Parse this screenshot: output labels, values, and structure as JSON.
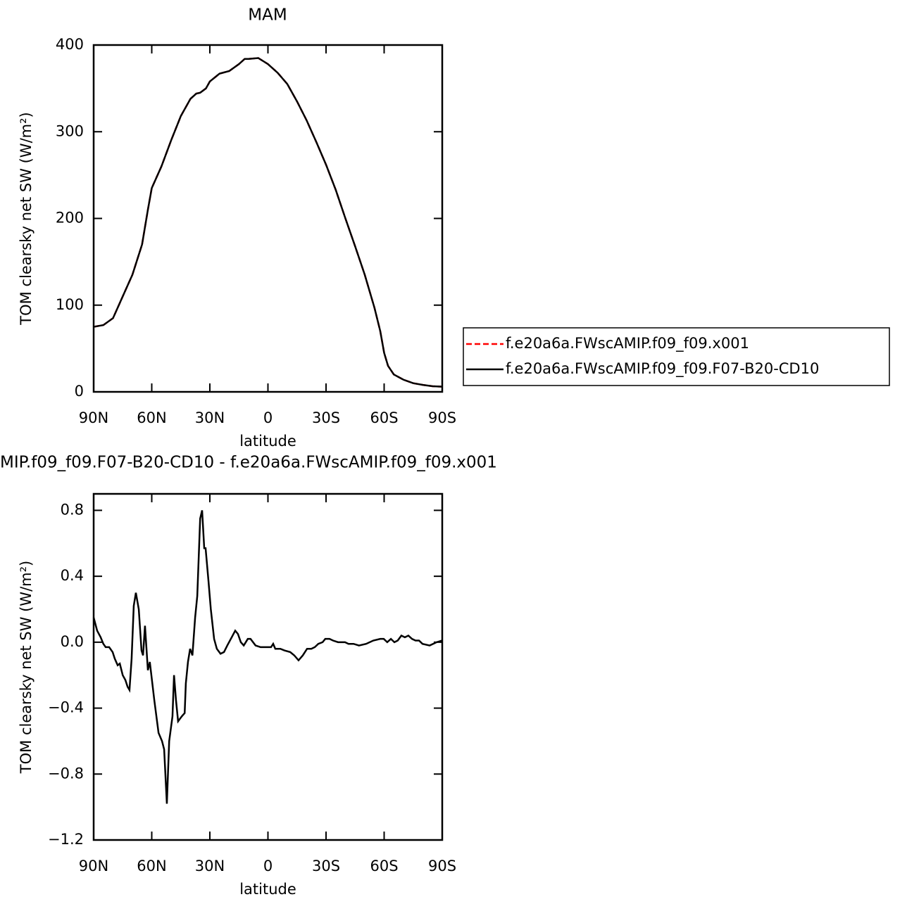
{
  "chart_data": [
    {
      "type": "line",
      "title": "MAM",
      "x_label": "latitude",
      "y_label": "TOM clearsky net SW (W/m²)",
      "x": [
        90,
        85,
        80,
        77,
        75,
        70,
        65,
        62,
        60,
        55,
        50,
        45,
        40,
        37,
        35,
        32,
        30,
        25,
        20,
        15,
        12,
        10,
        5,
        0,
        -5,
        -10,
        -15,
        -20,
        -25,
        -30,
        -35,
        -40,
        -45,
        -50,
        -55,
        -58,
        -60,
        -62,
        -65,
        -70,
        -75,
        -80,
        -85,
        -90
      ],
      "series": [
        {
          "name": "f.e20a6a.FWscAMIP.f09_f09.x001",
          "color": "#ff0000",
          "dash": true,
          "values": [
            75,
            77,
            85,
            100,
            110,
            135,
            170,
            210,
            235,
            260,
            290,
            318,
            338,
            344,
            345,
            350,
            358,
            367,
            370,
            378,
            384,
            384,
            385,
            378,
            368,
            355,
            335,
            313,
            288,
            262,
            233,
            200,
            168,
            135,
            97,
            70,
            45,
            30,
            20,
            14,
            10,
            8,
            6.5,
            6
          ]
        },
        {
          "name": "f.e20a6a.FWscAMIP.f09_f09.F07-B20-CD10",
          "color": "#000000",
          "dash": false,
          "values": [
            75,
            77,
            85,
            100,
            110,
            135,
            170,
            210,
            235,
            260,
            290,
            318,
            338,
            344,
            345,
            350,
            358,
            367,
            370,
            378,
            384,
            384,
            385,
            378,
            368,
            355,
            335,
            313,
            288,
            262,
            233,
            200,
            168,
            135,
            97,
            70,
            45,
            30,
            20,
            14,
            10,
            8,
            6.5,
            6
          ]
        }
      ],
      "xlim": [
        90,
        -90
      ],
      "xticks": [
        {
          "value": 90,
          "label": "90N"
        },
        {
          "value": 60,
          "label": "60N"
        },
        {
          "value": 30,
          "label": "30N"
        },
        0,
        {
          "value": -30,
          "label": "30S"
        },
        {
          "value": -60,
          "label": "60S"
        },
        {
          "value": -90,
          "label": "90S"
        }
      ],
      "ylim": [
        0,
        400
      ],
      "yticks": [
        0,
        100,
        200,
        300,
        400
      ],
      "legend": "right"
    },
    {
      "type": "line",
      "title": "MIP.f09_f09.F07-B20-CD10 - f.e20a6a.FWscAMIP.f09_f09.x001",
      "x_label": "latitude",
      "y_label": "TOM clearsky net SW (W/m²)",
      "x": [
        90,
        88.2,
        86.4,
        85,
        83.8,
        82,
        80.2,
        79.1,
        77.6,
        76.5,
        75,
        73.6,
        72.5,
        71.5,
        70.4,
        69.3,
        68.2,
        66.7,
        65.3,
        64.5,
        63.5,
        62,
        61,
        58.7,
        56.5,
        54.7,
        53.6,
        52.2,
        51,
        49.3,
        48.5,
        47.5,
        46.4,
        44.5,
        43,
        42.4,
        41.3,
        40.2,
        39,
        37.6,
        36.5,
        35,
        34,
        32.9,
        32.2,
        30.7,
        29.5,
        27.8,
        26.4,
        24.5,
        22.7,
        21,
        18.7,
        16.9,
        15.5,
        14,
        12.5,
        10.4,
        9,
        6.4,
        3.8,
        1.6,
        -1.6,
        -2.7,
        -3.8,
        -6.4,
        -8.5,
        -11.5,
        -13.6,
        -15.8,
        -18,
        -20.2,
        -22.4,
        -24.2,
        -26,
        -28.2,
        -29.6,
        -31.8,
        -33.6,
        -36.2,
        -39.8,
        -41.6,
        -44.2,
        -47,
        -50.7,
        -54.4,
        -58,
        -59.8,
        -61.6,
        -63.5,
        -65.3,
        -67,
        -68.9,
        -70.7,
        -72.5,
        -74.4,
        -76.2,
        -78,
        -79.8,
        -83.5,
        -87.1,
        -90
      ],
      "series": [
        {
          "color": "#000000",
          "values": [
            0.15,
            0.07,
            0.03,
            -0.01,
            -0.03,
            -0.03,
            -0.06,
            -0.1,
            -0.14,
            -0.13,
            -0.2,
            -0.23,
            -0.27,
            -0.29,
            -0.1,
            0.22,
            0.3,
            0.2,
            -0.05,
            -0.08,
            0.1,
            -0.17,
            -0.12,
            -0.35,
            -0.55,
            -0.6,
            -0.65,
            -0.98,
            -0.6,
            -0.45,
            -0.2,
            -0.35,
            -0.48,
            -0.45,
            -0.43,
            -0.25,
            -0.12,
            -0.04,
            -0.08,
            0.15,
            0.28,
            0.75,
            0.8,
            0.57,
            0.57,
            0.37,
            0.2,
            0.02,
            -0.04,
            -0.07,
            -0.06,
            -0.02,
            0.03,
            0.07,
            0.05,
            0,
            -0.02,
            0.02,
            0.02,
            -0.02,
            -0.03,
            -0.03,
            -0.03,
            -0.01,
            -0.04,
            -0.04,
            -0.05,
            -0.06,
            -0.08,
            -0.11,
            -0.08,
            -0.04,
            -0.04,
            -0.03,
            -0.01,
            0,
            0.02,
            0.02,
            0.01,
            0,
            0,
            -0.01,
            -0.01,
            -0.02,
            -0.01,
            0.01,
            0.02,
            0.02,
            0,
            0.02,
            0,
            0.01,
            0.04,
            0.03,
            0.04,
            0.02,
            0.01,
            0.01,
            -0.01,
            -0.02,
            0,
            0.01
          ]
        }
      ],
      "xlim": [
        90,
        -90
      ],
      "xticks": [
        {
          "value": 90,
          "label": "90N"
        },
        {
          "value": 60,
          "label": "60N"
        },
        {
          "value": 30,
          "label": "30N"
        },
        0,
        {
          "value": -30,
          "label": "30S"
        },
        {
          "value": -60,
          "label": "60S"
        },
        {
          "value": -90,
          "label": "90S"
        }
      ],
      "ylim": [
        -1.2,
        0.9
      ],
      "yticks": [
        {
          "value": -1.2,
          "label": "−1.2"
        },
        {
          "value": -0.8,
          "label": "−0.8"
        },
        {
          "value": -0.4,
          "label": "−0.4"
        },
        {
          "value": 0,
          "label": "0.0"
        },
        0.4,
        0.8
      ]
    }
  ]
}
